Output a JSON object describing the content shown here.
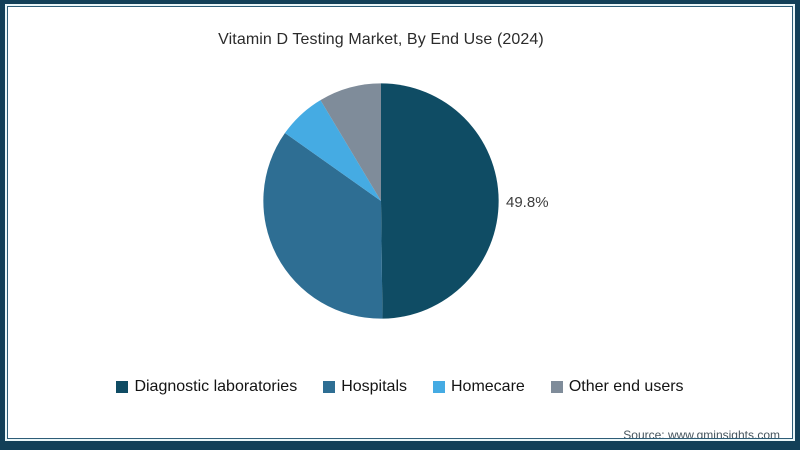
{
  "title": "Vitamin D Testing Market, By End Use (2024)",
  "source": "Source: www.gminsights.com",
  "frame": {
    "outer_color": "#123f58",
    "accent_color": "#eaf6f8",
    "inner_line_color": "#2e5d77"
  },
  "chart_data": {
    "type": "pie",
    "title": "Vitamin D Testing Market, By End Use (2024)",
    "categories": [
      "Diagnostic laboratories",
      "Hospitals",
      "Homecare",
      "Other end users"
    ],
    "values": [
      49.8,
      35.0,
      6.6,
      8.6
    ],
    "colors": [
      "#0f4c64",
      "#2e6e93",
      "#45abe3",
      "#7f8c9a"
    ],
    "unit": "%",
    "start_angle_deg": 0,
    "direction": "clockwise",
    "legend_position": "bottom",
    "data_labels": [
      {
        "index": 0,
        "text": "49.8%"
      }
    ]
  }
}
